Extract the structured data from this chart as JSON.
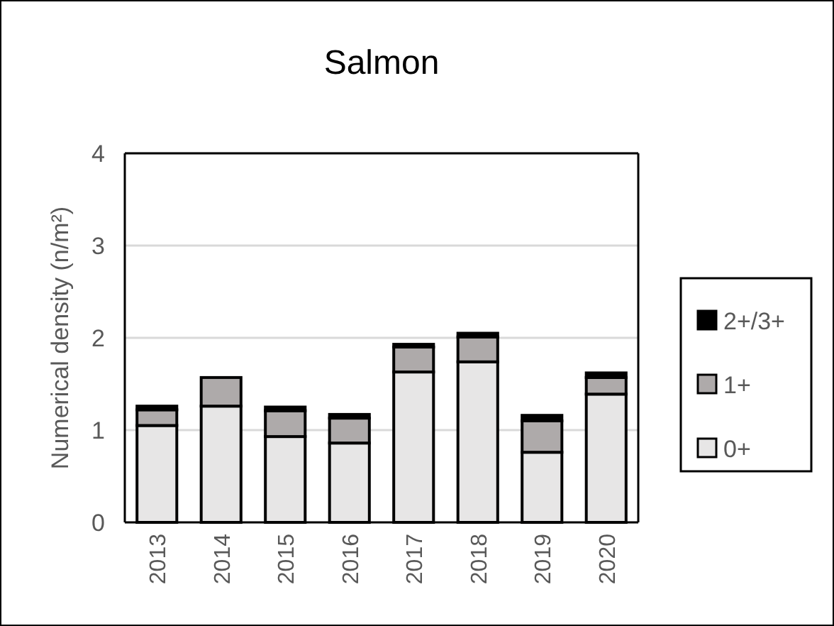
{
  "chart_data": {
    "type": "bar",
    "title": "Salmon",
    "ylabel": "Numerical density (n/m²)",
    "stacked": true,
    "categories": [
      "2013",
      "2014",
      "2015",
      "2016",
      "2017",
      "2018",
      "2019",
      "2020"
    ],
    "series": [
      {
        "name": "0+",
        "color": "#e7e6e6",
        "values": [
          1.05,
          1.26,
          0.93,
          0.86,
          1.63,
          1.74,
          0.76,
          1.39
        ]
      },
      {
        "name": "1+",
        "color": "#aeaaaa",
        "values": [
          0.17,
          0.31,
          0.28,
          0.27,
          0.27,
          0.27,
          0.34,
          0.18
        ]
      },
      {
        "name": "2+/3+",
        "color": "#000000",
        "values": [
          0.04,
          0,
          0.04,
          0.04,
          0.03,
          0.04,
          0.06,
          0.05
        ]
      }
    ],
    "ylim": [
      0,
      4
    ],
    "yticks": [
      0,
      1,
      2,
      3,
      4
    ],
    "grid": "y",
    "legend": "right"
  }
}
